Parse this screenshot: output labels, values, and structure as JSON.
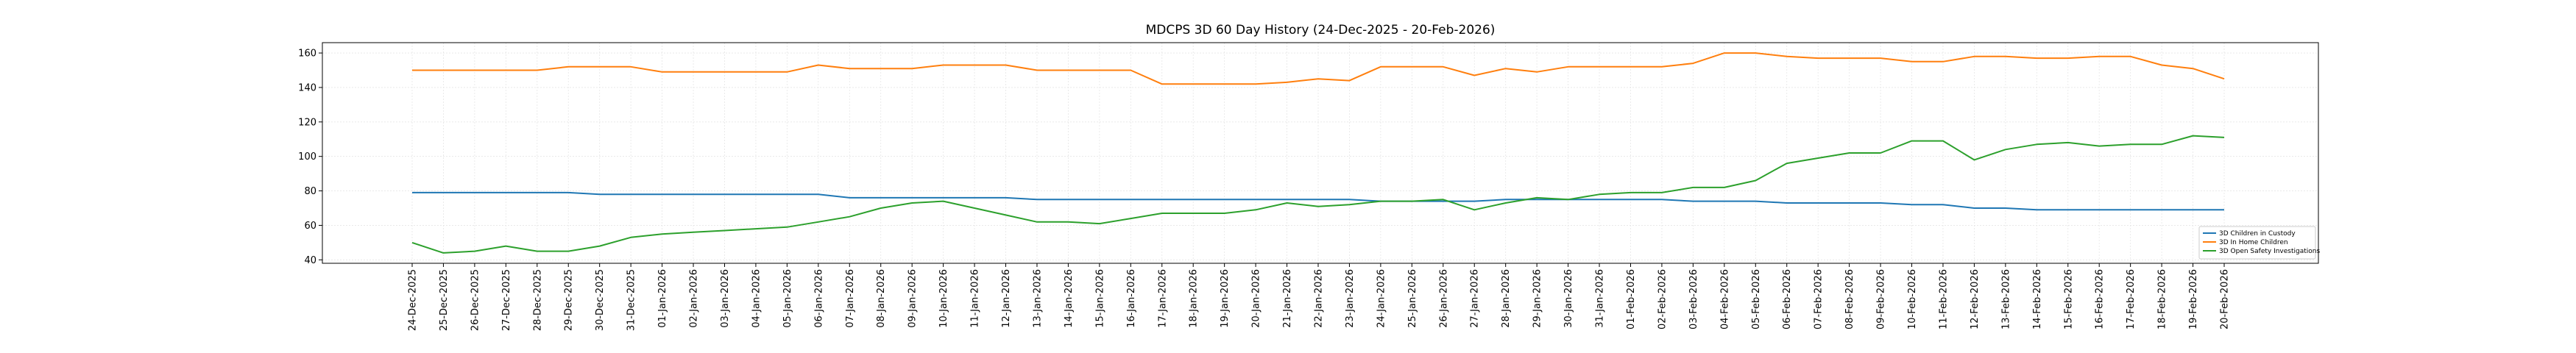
{
  "chart_data": {
    "type": "line",
    "title": "MDCPS 3D 60 Day History (24-Dec-2025 - 20-Feb-2026)",
    "xlabel": "",
    "ylabel": "",
    "ylim": [
      38,
      166
    ],
    "yticks": [
      40,
      60,
      80,
      100,
      120,
      140,
      160
    ],
    "grid": true,
    "legend_position": "lower-right",
    "categories": [
      "24-Dec-2025",
      "25-Dec-2025",
      "26-Dec-2025",
      "27-Dec-2025",
      "28-Dec-2025",
      "29-Dec-2025",
      "30-Dec-2025",
      "31-Dec-2025",
      "01-Jan-2026",
      "02-Jan-2026",
      "03-Jan-2026",
      "04-Jan-2026",
      "05-Jan-2026",
      "06-Jan-2026",
      "07-Jan-2026",
      "08-Jan-2026",
      "09-Jan-2026",
      "10-Jan-2026",
      "11-Jan-2026",
      "12-Jan-2026",
      "13-Jan-2026",
      "14-Jan-2026",
      "15-Jan-2026",
      "16-Jan-2026",
      "17-Jan-2026",
      "18-Jan-2026",
      "19-Jan-2026",
      "20-Jan-2026",
      "21-Jan-2026",
      "22-Jan-2026",
      "23-Jan-2026",
      "24-Jan-2026",
      "25-Jan-2026",
      "26-Jan-2026",
      "27-Jan-2026",
      "28-Jan-2026",
      "29-Jan-2026",
      "30-Jan-2026",
      "31-Jan-2026",
      "01-Feb-2026",
      "02-Feb-2026",
      "03-Feb-2026",
      "04-Feb-2026",
      "05-Feb-2026",
      "06-Feb-2026",
      "07-Feb-2026",
      "08-Feb-2026",
      "09-Feb-2026",
      "10-Feb-2026",
      "11-Feb-2026",
      "12-Feb-2026",
      "13-Feb-2026",
      "14-Feb-2026",
      "15-Feb-2026",
      "16-Feb-2026",
      "17-Feb-2026",
      "18-Feb-2026",
      "19-Feb-2026",
      "20-Feb-2026"
    ],
    "series": [
      {
        "name": "3D Children in Custody",
        "color": "#1f77b4",
        "values": [
          79,
          79,
          79,
          79,
          79,
          79,
          78,
          78,
          78,
          78,
          78,
          78,
          78,
          78,
          76,
          76,
          76,
          76,
          76,
          76,
          75,
          75,
          75,
          75,
          75,
          75,
          75,
          75,
          75,
          75,
          75,
          74,
          74,
          74,
          74,
          75,
          75,
          75,
          75,
          75,
          75,
          74,
          74,
          74,
          73,
          73,
          73,
          73,
          72,
          72,
          70,
          70,
          69,
          69,
          69,
          69,
          69,
          69,
          69
        ]
      },
      {
        "name": "3D In Home Children",
        "color": "#ff7f0e",
        "values": [
          150,
          150,
          150,
          150,
          150,
          152,
          152,
          152,
          149,
          149,
          149,
          149,
          149,
          153,
          151,
          151,
          151,
          153,
          153,
          153,
          150,
          150,
          150,
          150,
          142,
          142,
          142,
          142,
          143,
          145,
          144,
          152,
          152,
          152,
          147,
          151,
          149,
          152,
          152,
          152,
          152,
          154,
          160,
          160,
          158,
          157,
          157,
          157,
          155,
          155,
          158,
          158,
          157,
          157,
          158,
          158,
          153,
          151,
          145
        ]
      },
      {
        "name": "3D Open Safety Investigations",
        "color": "#2ca02c",
        "values": [
          50,
          44,
          45,
          48,
          45,
          45,
          48,
          53,
          55,
          56,
          57,
          58,
          59,
          62,
          65,
          70,
          73,
          74,
          70,
          66,
          62,
          62,
          61,
          64,
          67,
          67,
          67,
          69,
          73,
          71,
          72,
          74,
          74,
          75,
          69,
          73,
          76,
          75,
          78,
          79,
          79,
          82,
          82,
          86,
          96,
          99,
          102,
          102,
          109,
          109,
          98,
          104,
          107,
          108,
          106,
          107,
          107,
          112,
          111
        ]
      }
    ]
  }
}
